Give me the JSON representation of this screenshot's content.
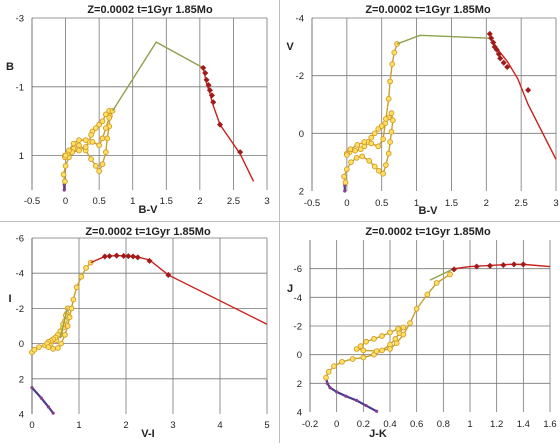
{
  "colors": {
    "giant_branch": "#cc1f1a",
    "diamond_marker": "#a21b1b",
    "loop_marker_fill": "#ffe066",
    "loop_marker_edge": "#d39a22",
    "loop_line": "#c9a02a",
    "link_line": "#8da24e",
    "start_line": "#4b3a8f",
    "grid": "#777777"
  },
  "chart_data": [
    {
      "type": "scatter",
      "title": "Z=0.0002  t=1Gyr  1.85Mo",
      "xlabel": "B-V",
      "ylabel": "B",
      "xlim": [
        -0.5,
        3
      ],
      "ylim": [
        2,
        -3
      ],
      "xticks": [
        "-0.5",
        "0",
        "0.5",
        "1",
        "1.5",
        "2",
        "2.5",
        "3"
      ],
      "yticks": [
        "-3",
        "-1",
        "1"
      ],
      "ytick_values": [
        -3,
        -1,
        1
      ],
      "grid_x": [
        0,
        0.5,
        1,
        1.5,
        2,
        2.5,
        3
      ],
      "grid_y": [
        -3,
        -1,
        1
      ],
      "series": [
        {
          "role": "start",
          "x": [
            -0.02,
            -0.02,
            -0.01
          ],
          "y": [
            2.0,
            1.85,
            1.75
          ]
        },
        {
          "role": "loop",
          "x": [
            -0.01,
            -0.03,
            0.0,
            0.05,
            0.12,
            0.2,
            0.3,
            0.38,
            0.45,
            0.5,
            0.55,
            0.6,
            0.62,
            0.65,
            0.66,
            0.65,
            0.6,
            0.55,
            0.5,
            0.45,
            0.4,
            0.38,
            0.35,
            0.3,
            0.2,
            0.1,
            0.03,
            -0.01,
            -0.01,
            0.0,
            0.05,
            0.12,
            0.2,
            0.3,
            0.4,
            0.5,
            0.55,
            0.6,
            0.65,
            0.7
          ],
          "y": [
            1.75,
            1.55,
            1.3,
            1.05,
            0.8,
            0.7,
            0.85,
            1.1,
            1.3,
            1.45,
            1.25,
            0.9,
            0.5,
            0.15,
            -0.15,
            -0.3,
            -0.2,
            0.0,
            0.1,
            0.2,
            0.3,
            0.4,
            0.6,
            0.75,
            0.85,
            0.9,
            0.95,
            1.0,
            1.05,
            1.0,
            0.85,
            0.65,
            0.55,
            0.55,
            0.6,
            0.7,
            0.5,
            0.2,
            -0.1,
            -0.3
          ]
        },
        {
          "role": "link",
          "x": [
            0.7,
            1.35,
            2.05
          ],
          "y": [
            -0.3,
            -2.3,
            -1.55
          ]
        },
        {
          "role": "giant",
          "x": [
            2.05,
            2.1,
            2.15,
            2.2,
            2.3,
            2.6,
            2.8
          ],
          "y": [
            -1.55,
            -1.1,
            -0.8,
            -0.45,
            0.1,
            0.95,
            1.75
          ]
        },
        {
          "role": "marks",
          "x": [
            2.05,
            2.08,
            2.1,
            2.13,
            2.15,
            2.18,
            2.2,
            2.3,
            2.6
          ],
          "y": [
            -1.55,
            -1.4,
            -1.2,
            -1.05,
            -0.9,
            -0.75,
            -0.55,
            0.1,
            0.9
          ]
        }
      ]
    },
    {
      "type": "scatter",
      "title": "Z=0.0002  t=1Gyr  1.85Mo",
      "xlabel": "B-V",
      "ylabel": "V",
      "xlim": [
        -0.5,
        3
      ],
      "ylim": [
        2,
        -4
      ],
      "xticks": [
        "-0.5",
        "0",
        "0.5",
        "1",
        "1.5",
        "2",
        "2.5",
        "3"
      ],
      "yticks": [
        "-4",
        "-2",
        "0",
        "2"
      ],
      "ytick_values": [
        -4,
        -2,
        0,
        2
      ],
      "grid_x": [
        0,
        0.5,
        1,
        1.5,
        2,
        2.5,
        3
      ],
      "grid_y": [
        -4,
        -2,
        0
      ],
      "series": [
        {
          "role": "start",
          "x": [
            -0.03,
            -0.03,
            -0.02
          ],
          "y": [
            2.0,
            1.8,
            1.7
          ]
        },
        {
          "role": "loop",
          "x": [
            -0.02,
            -0.04,
            0.0,
            0.06,
            0.14,
            0.22,
            0.32,
            0.4,
            0.46,
            0.52,
            0.56,
            0.6,
            0.62,
            0.64,
            0.66,
            0.64,
            0.6,
            0.55,
            0.5,
            0.45,
            0.4,
            0.35,
            0.3,
            0.25,
            0.2,
            0.12,
            0.04,
            0.0,
            0.0,
            0.05,
            0.15,
            0.25,
            0.35,
            0.45,
            0.52,
            0.56,
            0.6,
            0.62,
            0.65,
            0.68,
            0.72
          ],
          "y": [
            1.7,
            1.5,
            1.25,
            1.0,
            0.85,
            0.8,
            0.95,
            1.15,
            1.3,
            1.4,
            1.1,
            0.7,
            0.3,
            -0.05,
            -0.45,
            -0.7,
            -0.55,
            -0.35,
            -0.25,
            -0.15,
            0.0,
            0.15,
            0.3,
            0.45,
            0.55,
            0.6,
            0.65,
            0.7,
            0.75,
            0.55,
            0.4,
            0.3,
            0.35,
            0.45,
            0.2,
            -0.5,
            -1.2,
            -1.8,
            -2.4,
            -2.8,
            -3.1
          ]
        },
        {
          "role": "link",
          "x": [
            0.72,
            1.05,
            2.05
          ],
          "y": [
            -3.1,
            -3.4,
            -3.3
          ]
        },
        {
          "role": "giant",
          "x": [
            2.05,
            2.1,
            2.2,
            2.3,
            2.45,
            2.6,
            3.0
          ],
          "y": [
            -3.3,
            -3.15,
            -2.8,
            -2.5,
            -1.9,
            -1.0,
            0.9
          ]
        },
        {
          "role": "marks",
          "x": [
            2.05,
            2.07,
            2.1,
            2.12,
            2.15,
            2.18,
            2.2,
            2.25,
            2.3,
            2.6
          ],
          "y": [
            -3.45,
            -3.3,
            -3.15,
            -3.0,
            -2.9,
            -2.75,
            -2.6,
            -2.45,
            -2.3,
            -1.5
          ]
        }
      ]
    },
    {
      "type": "scatter",
      "title": "Z=0.0002  t=1Gyr  1.85Mo",
      "xlabel": "V-I",
      "ylabel": "I",
      "xlim": [
        0,
        5
      ],
      "ylim": [
        4,
        -6
      ],
      "xticks": [
        "0",
        "1",
        "2",
        "3",
        "4",
        "5"
      ],
      "yticks": [
        "-6",
        "-4",
        "-2",
        "0",
        "2",
        "4"
      ],
      "ytick_values": [
        -6,
        -4,
        -2,
        0,
        2,
        4
      ],
      "grid_x": [
        0,
        1,
        2,
        3,
        4,
        5
      ],
      "grid_y": [
        -6,
        -4,
        -2,
        0,
        2
      ],
      "series": [
        {
          "role": "start",
          "x": [
            0.0,
            0.2,
            0.35,
            0.45
          ],
          "y": [
            2.5,
            3.1,
            3.6,
            3.95
          ]
        },
        {
          "role": "loop",
          "x": [
            0.0,
            0.05,
            0.15,
            0.28,
            0.4,
            0.52,
            0.6,
            0.66,
            0.7,
            0.74,
            0.76,
            0.72,
            0.66,
            0.6,
            0.55,
            0.5,
            0.45,
            0.4,
            0.35,
            0.32,
            0.35,
            0.45,
            0.55,
            0.62,
            0.7,
            0.76,
            0.8,
            0.84,
            0.88,
            0.95,
            1.05,
            1.15,
            1.25
          ],
          "y": [
            0.5,
            0.35,
            0.2,
            0.1,
            0.0,
            -0.2,
            -0.5,
            -0.9,
            -1.3,
            -1.7,
            -2.0,
            -1.6,
            -1.1,
            -0.7,
            -0.5,
            -0.35,
            -0.25,
            -0.15,
            -0.1,
            0.0,
            0.2,
            0.3,
            0.25,
            0.0,
            -0.5,
            -1.0,
            -1.5,
            -2.0,
            -2.5,
            -3.2,
            -3.8,
            -4.3,
            -4.6
          ]
        },
        {
          "role": "link",
          "x": [
            0.6,
            0.75
          ],
          "y": [
            -0.3,
            -2.0
          ]
        },
        {
          "role": "giant",
          "x": [
            1.25,
            1.55,
            1.8,
            2.2,
            2.5,
            2.9,
            5.0
          ],
          "y": [
            -4.6,
            -4.95,
            -5.0,
            -4.95,
            -4.75,
            -3.9,
            -1.1
          ]
        },
        {
          "role": "marks",
          "x": [
            1.55,
            1.65,
            1.8,
            1.95,
            2.05,
            2.15,
            2.25,
            2.5,
            2.9
          ],
          "y": [
            -4.95,
            -4.97,
            -5.0,
            -4.98,
            -4.97,
            -4.95,
            -4.9,
            -4.7,
            -3.9
          ]
        }
      ]
    },
    {
      "type": "scatter",
      "title": "Z=0.0002  t=1Gyr  1.85Mo",
      "xlabel": "J-K",
      "ylabel": "J",
      "xlim": [
        -0.2,
        1.6
      ],
      "ylim": [
        4,
        -8
      ],
      "xticks": [
        "-0.2",
        "0",
        "0.2",
        "0.4",
        "0.6",
        "0.8",
        "1",
        "1.2",
        "1.4",
        "1.6"
      ],
      "yticks": [
        "-6",
        "-4",
        "-2",
        "0",
        "2",
        "4"
      ],
      "ytick_values": [
        -6,
        -4,
        -2,
        0,
        2,
        4
      ],
      "grid_x": [
        0,
        0.2,
        0.4,
        0.6,
        0.8,
        1,
        1.2,
        1.4,
        1.6
      ],
      "grid_y": [
        -6,
        -4,
        -2,
        0,
        2
      ],
      "series": [
        {
          "role": "start",
          "x": [
            -0.08,
            -0.07,
            -0.05,
            0.0,
            0.07,
            0.15,
            0.22,
            0.3
          ],
          "y": [
            1.6,
            2.0,
            2.3,
            2.6,
            2.9,
            3.2,
            3.55,
            3.95
          ]
        },
        {
          "role": "loop",
          "x": [
            -0.08,
            -0.06,
            -0.02,
            0.04,
            0.12,
            0.2,
            0.28,
            0.34,
            0.4,
            0.44,
            0.47,
            0.5,
            0.46,
            0.4,
            0.34,
            0.28,
            0.22,
            0.18,
            0.15,
            0.2,
            0.3,
            0.4,
            0.45,
            0.5,
            0.55,
            0.6,
            0.68,
            0.75,
            0.85
          ],
          "y": [
            1.6,
            1.2,
            0.8,
            0.5,
            0.3,
            0.2,
            0.0,
            -0.3,
            -0.7,
            -1.1,
            -1.5,
            -1.9,
            -1.8,
            -1.55,
            -1.3,
            -1.1,
            -0.9,
            -0.6,
            -0.4,
            -0.3,
            -0.25,
            -0.4,
            -0.8,
            -1.4,
            -2.2,
            -3.2,
            -4.2,
            -5.0,
            -5.6
          ]
        },
        {
          "role": "link",
          "x": [
            0.7,
            0.88
          ],
          "y": [
            -5.2,
            -6.0
          ]
        },
        {
          "role": "giant",
          "x": [
            0.88,
            1.0,
            1.1,
            1.2,
            1.3,
            1.4,
            1.6
          ],
          "y": [
            -6.0,
            -6.15,
            -6.2,
            -6.25,
            -6.3,
            -6.3,
            -6.15
          ]
        },
        {
          "role": "marks",
          "x": [
            0.88,
            1.05,
            1.15,
            1.25,
            1.33,
            1.4
          ],
          "y": [
            -5.95,
            -6.15,
            -6.2,
            -6.25,
            -6.3,
            -6.3
          ]
        }
      ]
    }
  ]
}
